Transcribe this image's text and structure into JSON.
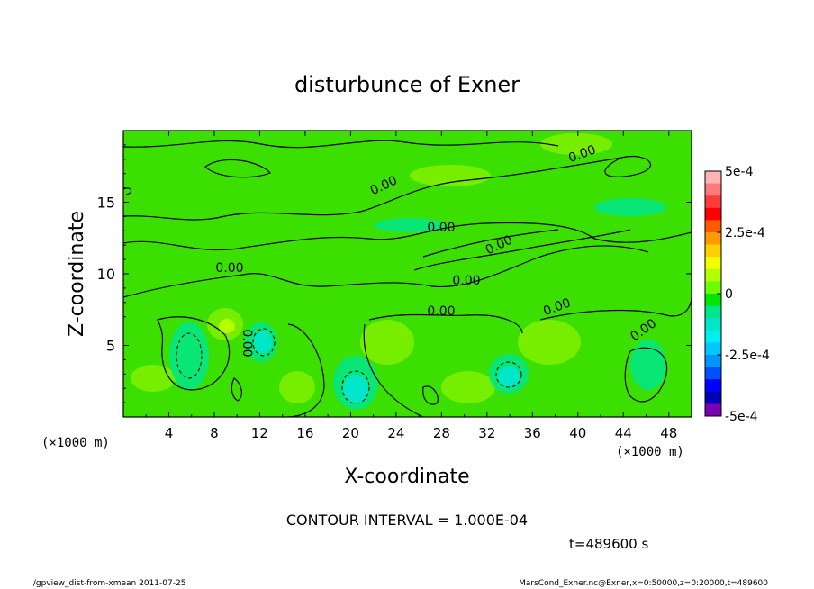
{
  "chart_data": {
    "type": "heatmap",
    "title": "disturbunce of Exner",
    "xlabel": "X-coordinate",
    "ylabel": "Z-coordinate",
    "x_unit": "(×1000 m)",
    "y_unit": "(×1000 m)",
    "xlim": [
      0,
      50
    ],
    "ylim": [
      0,
      20
    ],
    "x_ticks": [
      4,
      8,
      12,
      16,
      20,
      24,
      28,
      32,
      36,
      40,
      44,
      48
    ],
    "y_ticks": [
      5,
      10,
      15
    ],
    "contour_interval_text": "CONTOUR INTERVAL = 1.000E-04",
    "contour_labels": [
      "0.00",
      "0.00",
      "0.00",
      "0.00",
      "0.00",
      "0.00",
      "0.00",
      "0.00",
      "0.00",
      "0.00"
    ],
    "colorbar": {
      "range": [
        -0.0005,
        0.0005
      ],
      "levels": 20,
      "tick_labels": [
        "5e-4",
        "2.5e-4",
        "0",
        "-2.5e-4",
        "-5e-4"
      ],
      "tick_values": [
        0.0005,
        0.00025,
        0,
        -0.00025,
        -0.0005
      ],
      "colors": [
        "#ffb4b4",
        "#ff7a7a",
        "#ff3a3a",
        "#ff0000",
        "#ff5a00",
        "#ff9a00",
        "#ffd000",
        "#f0ff00",
        "#b4ff00",
        "#6cff00",
        "#00e600",
        "#00e68a",
        "#00e6c8",
        "#00f0f0",
        "#00c8ff",
        "#0096ff",
        "#0050ff",
        "#0000ff",
        "#0000b4",
        "#7a00b4"
      ]
    },
    "time_text": "t=489600 s",
    "footer_left": "./gpview_dist-from-xmean  2011-07-25",
    "footer_right": "MarsCond_Exner.nc@Exner,x=0:50000,z=0:20000,t=489600"
  }
}
